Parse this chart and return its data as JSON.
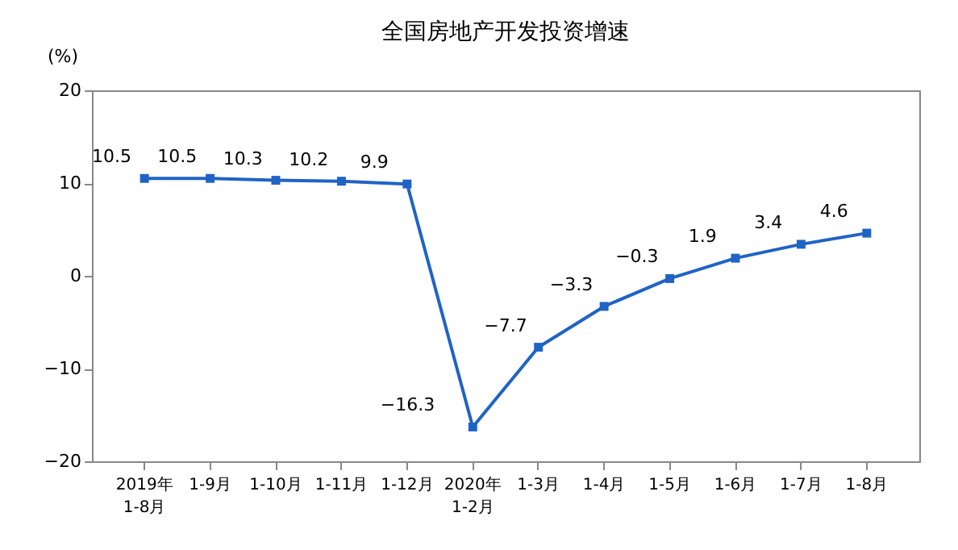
{
  "chart_data": {
    "type": "line",
    "title": "全国房地产开发投资增速",
    "ylabel": "(%)",
    "categories": [
      "2019年\n1-8月",
      "1-9月",
      "1-10月",
      "1-11月",
      "1-12月",
      "2020年\n1-2月",
      "1-3月",
      "1-4月",
      "1-5月",
      "1-6月",
      "1-7月",
      "1-8月"
    ],
    "series": [
      {
        "color": "#2063c6",
        "values": [
          10.5,
          10.5,
          10.3,
          10.2,
          9.9,
          -16.3,
          -7.7,
          -3.3,
          -0.3,
          1.9,
          3.4,
          4.6
        ]
      }
    ],
    "ylim": [
      -20,
      20
    ],
    "yticks": [
      -20,
      -10,
      0,
      10,
      20
    ],
    "data_labels": true,
    "marker": "square",
    "grid": false,
    "legend": false
  }
}
